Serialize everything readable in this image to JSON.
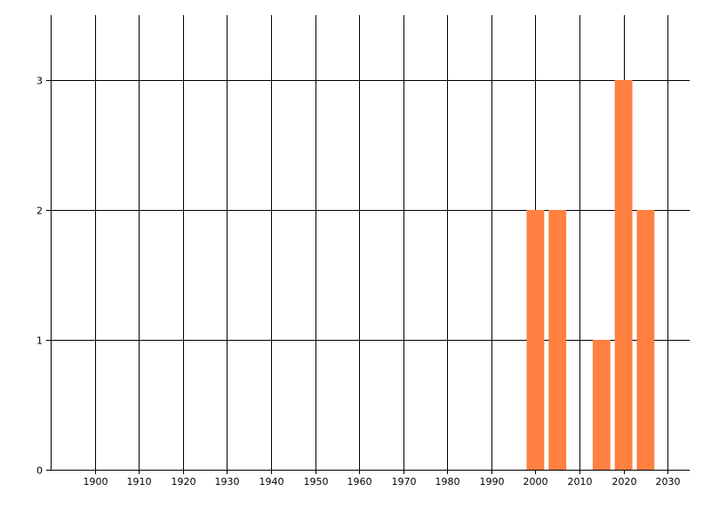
{
  "chart_data": {
    "type": "bar",
    "title": "",
    "xlabel": "",
    "ylabel": "",
    "x": [
      2000,
      2005,
      2015,
      2020,
      2025
    ],
    "values": [
      2,
      2,
      1,
      3,
      2
    ],
    "bar_width_years": 4,
    "xlim": [
      1890,
      2035
    ],
    "ylim": [
      0,
      3.5
    ],
    "xticks": [
      1900,
      1910,
      1920,
      1930,
      1940,
      1950,
      1960,
      1970,
      1980,
      1990,
      2000,
      2010,
      2020,
      2030
    ],
    "yticks": [
      0,
      1,
      2,
      3
    ],
    "grid": true,
    "legend": "none",
    "bar_color": "#FF8040",
    "grid_color": "#000000"
  }
}
